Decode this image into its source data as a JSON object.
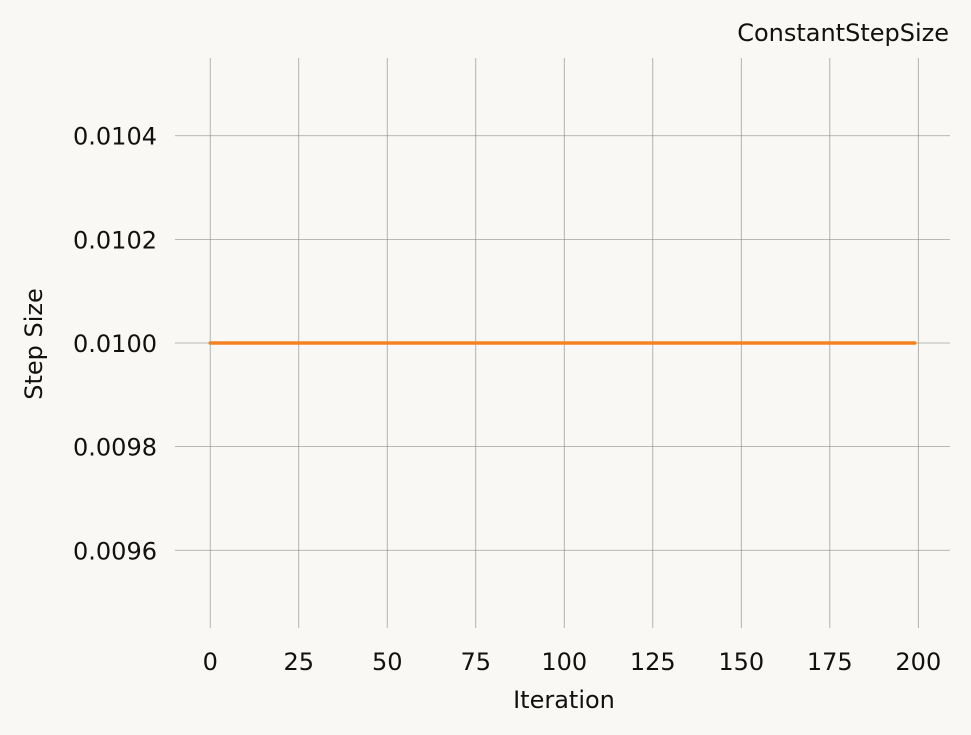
{
  "chart_data": {
    "type": "line",
    "title": "ConstantStepSize",
    "xlabel": "Iteration",
    "ylabel": "Step Size",
    "xlim": [
      -9.95,
      208.95
    ],
    "ylim": [
      0.00945,
      0.01055
    ],
    "xticks": [
      0,
      25,
      50,
      75,
      100,
      125,
      150,
      175,
      200
    ],
    "xtick_labels": [
      "0",
      "25",
      "50",
      "75",
      "100",
      "125",
      "150",
      "175",
      "200"
    ],
    "yticks": [
      0.0096,
      0.0098,
      0.01,
      0.0102,
      0.0104
    ],
    "ytick_labels": [
      "0.0096",
      "0.0098",
      "0.0100",
      "0.0102",
      "0.0104"
    ],
    "grid": true,
    "legend": "none",
    "series": [
      {
        "color": "#f58220",
        "x_start": 0,
        "x_end": 199,
        "constant_value": 0.01
      }
    ]
  }
}
